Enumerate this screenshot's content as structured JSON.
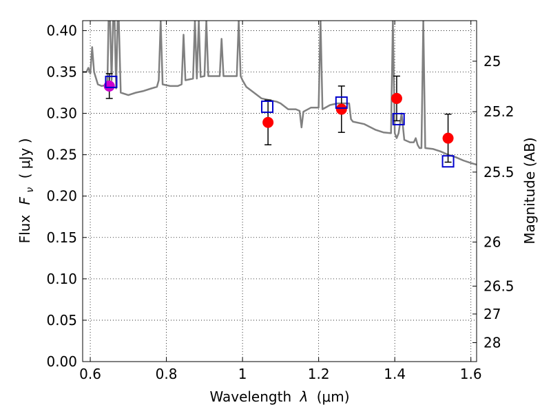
{
  "chart_data": {
    "type": "scatter",
    "title": "",
    "xlabel_text": "Wavelength",
    "xlabel_symbol": "λ",
    "xlabel_unit": "(μm)",
    "ylabel_text": "Flux",
    "ylabel_symbol": "F",
    "ylabel_subscript": "ν",
    "ylabel_unit": "( μJy )",
    "y2label": "Magnitude (AB)",
    "xlim": [
      0.58,
      1.615
    ],
    "ylim": [
      0.0,
      0.412
    ],
    "grid": true,
    "x_ticks": [
      0.6,
      0.8,
      1.0,
      1.2,
      1.4,
      1.6
    ],
    "x_tick_labels": [
      "0.6",
      "0.8",
      "1",
      "1.2",
      "1.4",
      "1.6"
    ],
    "y_ticks": [
      0.0,
      0.05,
      0.1,
      0.15,
      0.2,
      0.25,
      0.3,
      0.35,
      0.4
    ],
    "y_tick_labels": [
      "0.00",
      "0.05",
      "0.10",
      "0.15",
      "0.20",
      "0.25",
      "0.30",
      "0.35",
      "0.40"
    ],
    "y2_ticks": [
      {
        "flux": 0.363,
        "label": "25"
      },
      {
        "flux": 0.302,
        "label": "25.2"
      },
      {
        "flux": 0.229,
        "label": "25.5"
      },
      {
        "flux": 0.1445,
        "label": "26"
      },
      {
        "flux": 0.0912,
        "label": "26.5"
      },
      {
        "flux": 0.0575,
        "label": "27"
      },
      {
        "flux": 0.0229,
        "label": "28"
      }
    ],
    "model_color": "#808080",
    "observed_color": "#ff0000",
    "model_phot_color": "#0000cc",
    "single_point_color": "#cc00cc",
    "observed": [
      {
        "x": 1.067,
        "y": 0.289,
        "err": 0.027
      },
      {
        "x": 1.26,
        "y": 0.305,
        "err": 0.028
      },
      {
        "x": 1.405,
        "y": 0.318,
        "err": 0.027
      },
      {
        "x": 1.54,
        "y": 0.27,
        "err": 0.029
      }
    ],
    "single_point": {
      "x": 0.65,
      "y": 0.333,
      "err": 0.015
    },
    "model_photometry": [
      {
        "x": 0.655,
        "y": 0.338
      },
      {
        "x": 1.065,
        "y": 0.308
      },
      {
        "x": 1.26,
        "y": 0.313
      },
      {
        "x": 1.41,
        "y": 0.293
      },
      {
        "x": 1.54,
        "y": 0.242
      }
    ],
    "model_sed": [
      [
        0.58,
        0.35
      ],
      [
        0.59,
        0.35
      ],
      [
        0.595,
        0.355
      ],
      [
        0.6,
        0.348
      ],
      [
        0.605,
        0.38
      ],
      [
        0.61,
        0.35
      ],
      [
        0.62,
        0.335
      ],
      [
        0.63,
        0.333
      ],
      [
        0.64,
        0.334
      ],
      [
        0.645,
        0.334
      ],
      [
        0.648,
        0.412
      ],
      [
        0.652,
        0.412
      ],
      [
        0.656,
        0.34
      ],
      [
        0.66,
        0.412
      ],
      [
        0.664,
        0.412
      ],
      [
        0.668,
        0.33
      ],
      [
        0.672,
        0.412
      ],
      [
        0.675,
        0.412
      ],
      [
        0.68,
        0.325
      ],
      [
        0.7,
        0.322
      ],
      [
        0.72,
        0.325
      ],
      [
        0.74,
        0.327
      ],
      [
        0.76,
        0.33
      ],
      [
        0.775,
        0.332
      ],
      [
        0.78,
        0.34
      ],
      [
        0.785,
        0.412
      ],
      [
        0.79,
        0.335
      ],
      [
        0.81,
        0.333
      ],
      [
        0.83,
        0.333
      ],
      [
        0.84,
        0.335
      ],
      [
        0.845,
        0.395
      ],
      [
        0.85,
        0.34
      ],
      [
        0.87,
        0.342
      ],
      [
        0.875,
        0.412
      ],
      [
        0.88,
        0.342
      ],
      [
        0.885,
        0.412
      ],
      [
        0.89,
        0.344
      ],
      [
        0.9,
        0.345
      ],
      [
        0.905,
        0.412
      ],
      [
        0.91,
        0.345
      ],
      [
        0.93,
        0.345
      ],
      [
        0.94,
        0.345
      ],
      [
        0.945,
        0.39
      ],
      [
        0.95,
        0.345
      ],
      [
        0.97,
        0.345
      ],
      [
        0.985,
        0.345
      ],
      [
        0.99,
        0.412
      ],
      [
        0.995,
        0.345
      ],
      [
        1.0,
        0.34
      ],
      [
        1.01,
        0.332
      ],
      [
        1.03,
        0.325
      ],
      [
        1.05,
        0.318
      ],
      [
        1.07,
        0.316
      ],
      [
        1.09,
        0.314
      ],
      [
        1.1,
        0.312
      ],
      [
        1.12,
        0.305
      ],
      [
        1.14,
        0.305
      ],
      [
        1.15,
        0.303
      ],
      [
        1.155,
        0.283
      ],
      [
        1.16,
        0.302
      ],
      [
        1.18,
        0.307
      ],
      [
        1.2,
        0.307
      ],
      [
        1.205,
        0.412
      ],
      [
        1.21,
        0.305
      ],
      [
        1.23,
        0.31
      ],
      [
        1.25,
        0.312
      ],
      [
        1.28,
        0.312
      ],
      [
        1.285,
        0.293
      ],
      [
        1.29,
        0.29
      ],
      [
        1.32,
        0.287
      ],
      [
        1.35,
        0.28
      ],
      [
        1.37,
        0.277
      ],
      [
        1.39,
        0.276
      ],
      [
        1.395,
        0.412
      ],
      [
        1.4,
        0.276
      ],
      [
        1.405,
        0.27
      ],
      [
        1.41,
        0.276
      ],
      [
        1.418,
        0.3
      ],
      [
        1.425,
        0.268
      ],
      [
        1.44,
        0.265
      ],
      [
        1.45,
        0.265
      ],
      [
        1.455,
        0.27
      ],
      [
        1.46,
        0.262
      ],
      [
        1.465,
        0.258
      ],
      [
        1.47,
        0.258
      ],
      [
        1.475,
        0.412
      ],
      [
        1.48,
        0.258
      ],
      [
        1.5,
        0.257
      ],
      [
        1.52,
        0.254
      ],
      [
        1.54,
        0.25
      ],
      [
        1.56,
        0.247
      ],
      [
        1.58,
        0.243
      ],
      [
        1.6,
        0.24
      ],
      [
        1.615,
        0.238
      ]
    ]
  }
}
